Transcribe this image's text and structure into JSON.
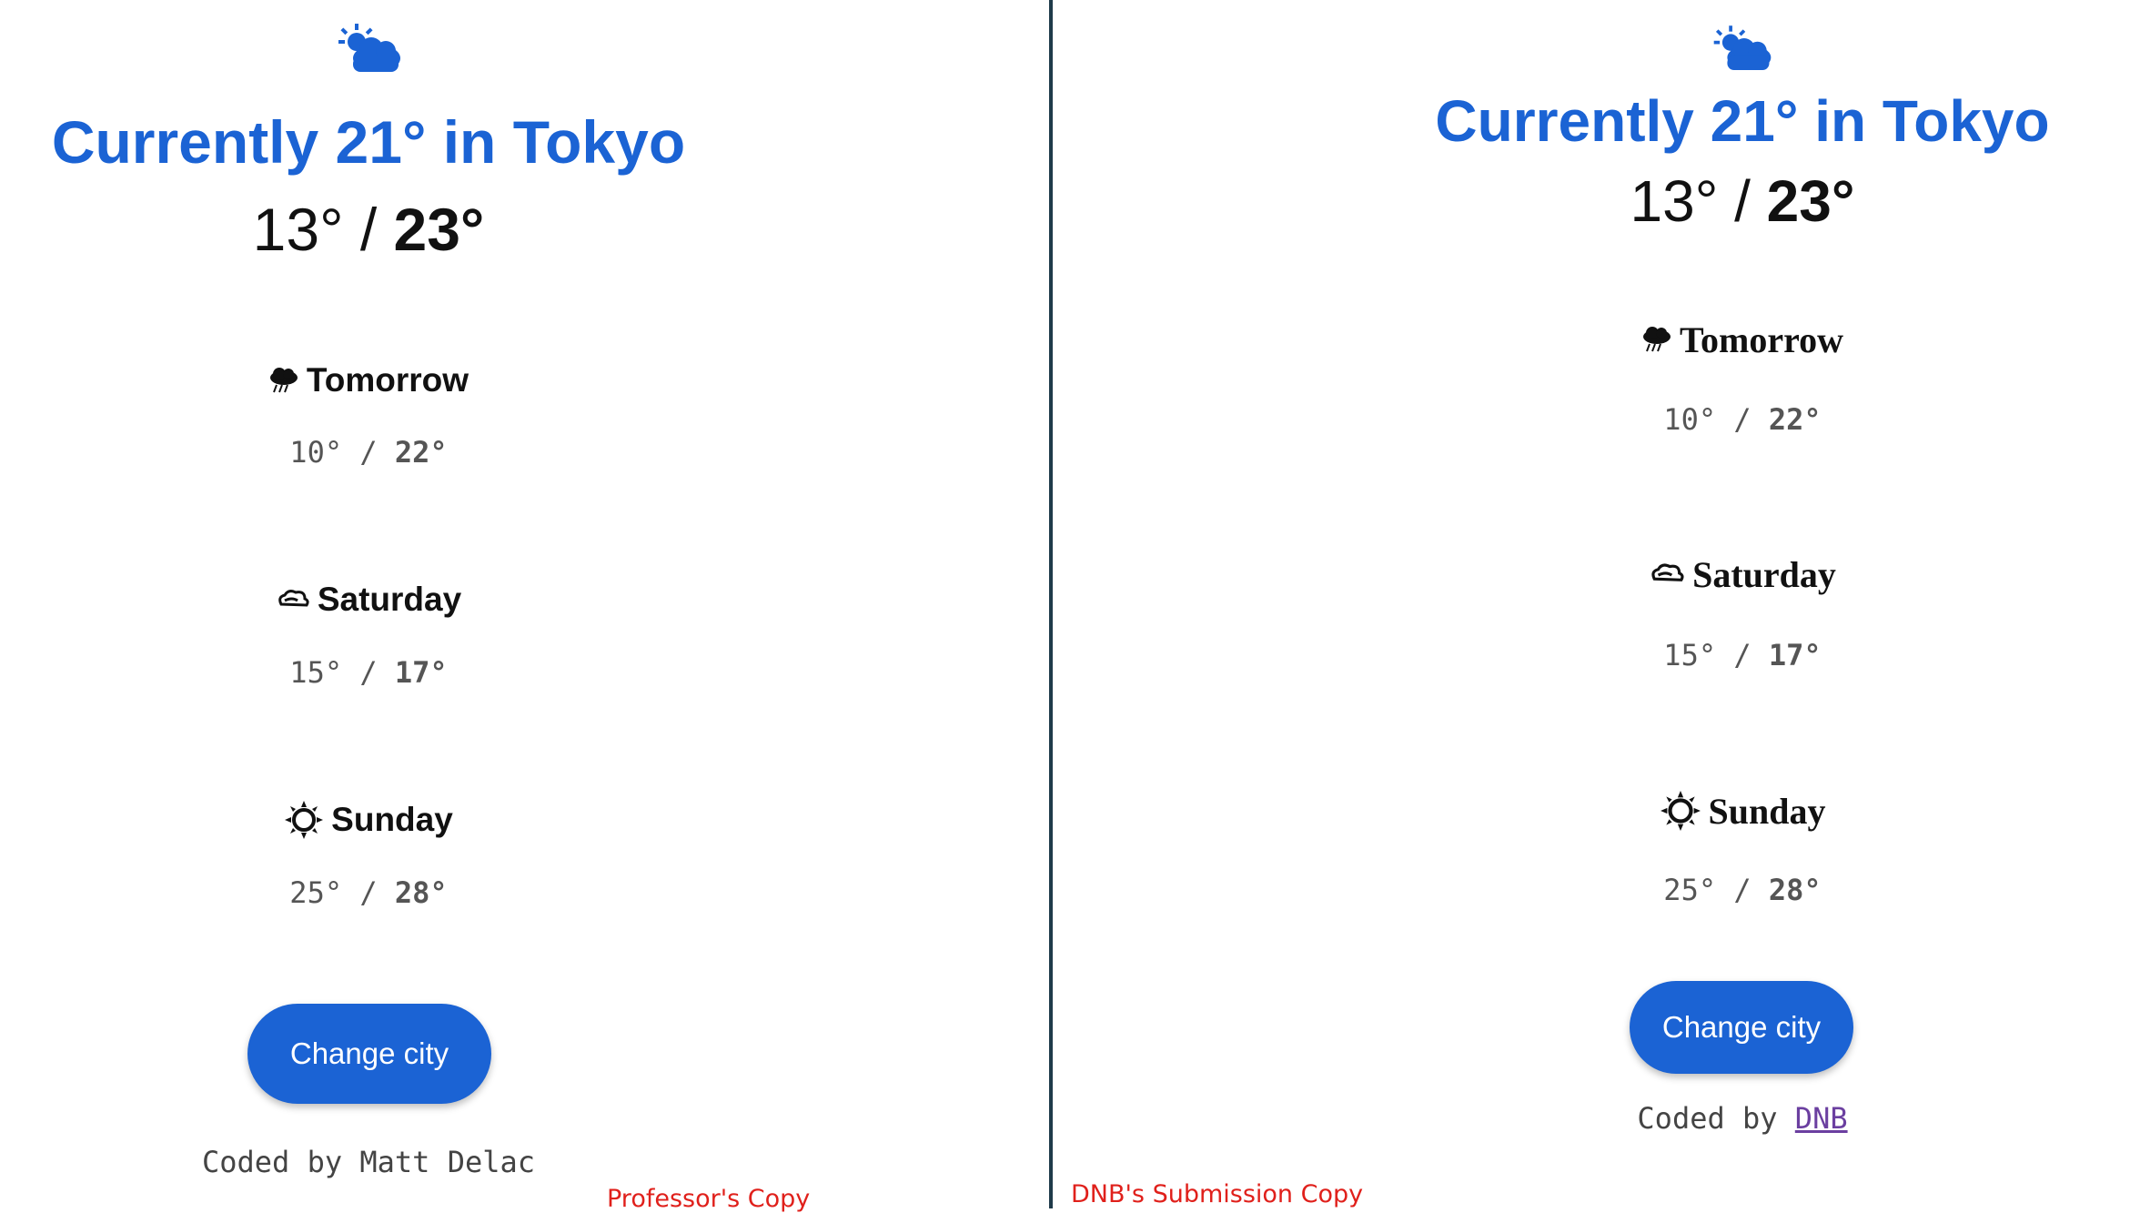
{
  "colors": {
    "accent": "#1b63d4",
    "caption": "#e0201b",
    "link": "#6b3fa0",
    "divider": "#1f3a4a"
  },
  "left": {
    "current_icon": "sun-behind-cloud-icon",
    "headline": "Currently 21° in Tokyo",
    "today": {
      "low": "13°",
      "separator": " / ",
      "high": "23°"
    },
    "forecast": [
      {
        "icon": "cloud-with-rain-icon",
        "day": "Tomorrow",
        "low": "10°",
        "separator": " / ",
        "high": "22°"
      },
      {
        "icon": "wind-cloud-icon",
        "day": "Saturday",
        "low": "15°",
        "separator": " / ",
        "high": "17°"
      },
      {
        "icon": "sun-icon",
        "day": "Sunday",
        "low": "25°",
        "separator": " / ",
        "high": "28°"
      }
    ],
    "button_label": "Change city",
    "credit_prefix": "Coded by ",
    "credit_name": "Matt Delac",
    "caption": "Professor's Copy"
  },
  "right": {
    "current_icon": "sun-behind-cloud-icon",
    "headline": "Currently 21° in Tokyo",
    "today": {
      "low": "13°",
      "separator": " / ",
      "high": "23°"
    },
    "forecast": [
      {
        "icon": "cloud-with-rain-icon",
        "day": "Tomorrow",
        "low": "10°",
        "separator": " / ",
        "high": "22°"
      },
      {
        "icon": "wind-cloud-icon",
        "day": "Saturday",
        "low": "15°",
        "separator": " / ",
        "high": "17°"
      },
      {
        "icon": "sun-icon",
        "day": "Sunday",
        "low": "25°",
        "separator": " / ",
        "high": "28°"
      }
    ],
    "button_label": "Change city",
    "credit_prefix": "Coded by ",
    "credit_name": "DNB",
    "caption": "DNB's Submission Copy"
  }
}
